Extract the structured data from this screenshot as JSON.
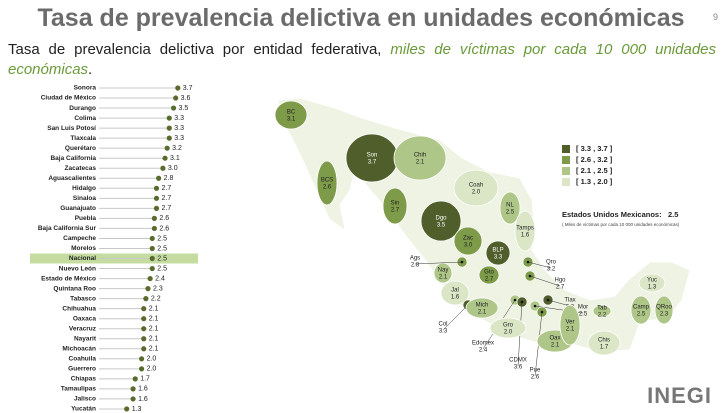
{
  "header": {
    "title": "Tasa de prevalencia delictiva en unidades económicas",
    "page": "9",
    "subtitle": "Tasa de prevalencia delictiva por entidad federativa,",
    "subtitle_em": "miles de víctimas por cada 10 000 unidades económicas",
    "subtitle_end": "."
  },
  "chart_data": [
    {
      "type": "lollipop",
      "color": "#5a6b2e",
      "highlight": "Nacional",
      "highlight_color": "#c5dca0",
      "categories": [
        "Sonora",
        "Ciudad de México",
        "Durango",
        "Colima",
        "San Luis Potosí",
        "Tlaxcala",
        "Querétaro",
        "Baja California",
        "Zacatecas",
        "Aguascalientes",
        "Hidalgo",
        "Sinaloa",
        "Guanajuato",
        "Puebla",
        "Baja California Sur",
        "Campeche",
        "Morelos",
        "Nacional",
        "Nuevo León",
        "Estado de México",
        "Quintana Roo",
        "Tabasco",
        "Chihuahua",
        "Oaxaca",
        "Veracruz",
        "Nayarit",
        "Michoacán",
        "Coahuila",
        "Guerrero",
        "Chiapas",
        "Tamaulipas",
        "Jalisco",
        "Yucatán"
      ],
      "values": [
        3.7,
        3.6,
        3.5,
        3.3,
        3.3,
        3.3,
        3.2,
        3.1,
        3.0,
        2.8,
        2.7,
        2.7,
        2.7,
        2.6,
        2.6,
        2.5,
        2.5,
        2.5,
        2.5,
        2.4,
        2.3,
        2.2,
        2.1,
        2.1,
        2.1,
        2.1,
        2.1,
        2.0,
        2.0,
        1.7,
        1.6,
        1.6,
        1.3
      ],
      "value_labels": [
        "3.7",
        "3.6",
        "3.5",
        "3.3",
        "3.3",
        "3.3",
        "3.2",
        "3.1",
        "3.0",
        "2.8",
        "2.7",
        "2.7",
        "2.7",
        "2.6",
        "2.6",
        "2.5",
        "2.5",
        "2.5",
        "2.5",
        "2.4",
        "2.3",
        "2.2",
        "2.1",
        "2.1",
        "2.1",
        "2.1",
        "2.1",
        "2.0",
        "2.0",
        "1.7",
        "1.6",
        "1.6",
        "1.3"
      ]
    },
    {
      "type": "choropleth",
      "regions": [
        "BC",
        "BCS",
        "Son",
        "Chih",
        "Coah",
        "NL",
        "Tamps",
        "Sin",
        "Dgo",
        "Zac",
        "BLP",
        "Nay",
        "Ags",
        "Jal",
        "Gto",
        "Qro",
        "Hgo",
        "Col",
        "Mich",
        "Tlax",
        "Mor",
        "Edomex",
        "CDMX",
        "Pue",
        "Gro",
        "Oax",
        "Ver",
        "Tab",
        "Chis",
        "Camp",
        "QRoo",
        "Yuc"
      ],
      "values": [
        3.1,
        2.6,
        3.7,
        2.1,
        2.0,
        2.5,
        1.6,
        2.7,
        3.5,
        3.0,
        3.3,
        2.1,
        2.8,
        1.6,
        2.7,
        3.2,
        2.7,
        3.3,
        2.1,
        3.3,
        2.5,
        2.4,
        3.6,
        2.6,
        2.0,
        2.1,
        2.1,
        2.2,
        1.7,
        2.5,
        2.3,
        1.3
      ],
      "value_labels": [
        "3.1",
        "2.6",
        "3.7",
        "2.1",
        "2.0",
        "2.5",
        "1.6",
        "2.7",
        "3.5",
        "3.0",
        "3.3",
        "2.1",
        "2.8",
        "1.6",
        "2.7",
        "3.2",
        "2.7",
        "3.3",
        "2.1",
        "3.3",
        "2.5",
        "2.4",
        "3.6",
        "2.6",
        "2.0",
        "2.1",
        "2.1",
        "2.2",
        "1.7",
        "2.5",
        "2.3",
        "1.3"
      ],
      "legend": [
        {
          "label": "[ 3.3 ,  3.7 ]",
          "min": 3.3,
          "max": 3.7,
          "color": "#4f5e2b"
        },
        {
          "label": "[ 2.6 ,  3.2 ]",
          "min": 2.6,
          "max": 3.2,
          "color": "#7d9b48"
        },
        {
          "label": "[ 2.1 ,  2.5 ]",
          "min": 2.1,
          "max": 2.5,
          "color": "#aec688"
        },
        {
          "label": "[ 1.3 ,  2.0 ]",
          "min": 1.3,
          "max": 2.0,
          "color": "#dbe6c6"
        }
      ],
      "national_label": "Estados Unidos Mexicanos:",
      "national_value": 2.5,
      "national_note": "( Miles de víctimas por cada 10 000 unidades económicas)"
    }
  ],
  "logo": "INEGI"
}
